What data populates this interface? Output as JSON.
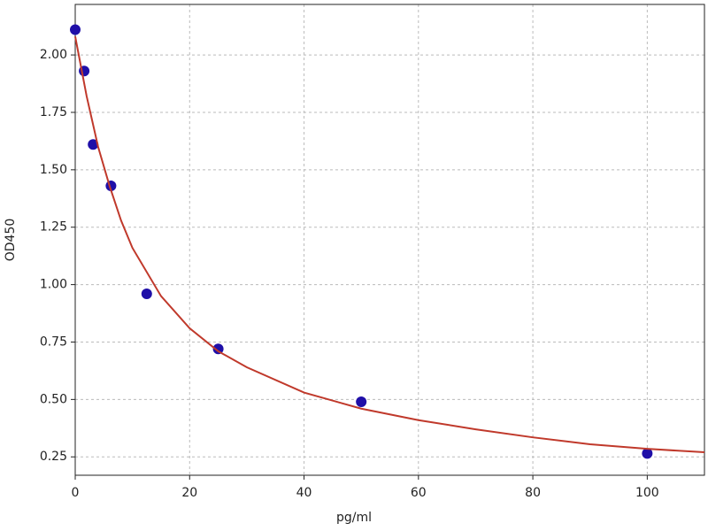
{
  "chart_data": {
    "type": "scatter",
    "xlabel": "pg/ml",
    "ylabel": "OD450",
    "xlim": [
      0,
      110
    ],
    "ylim": [
      0.17,
      2.22
    ],
    "xticks": [
      0,
      20,
      40,
      60,
      80,
      100
    ],
    "yticks": [
      {
        "value": 0.25,
        "label": "0.25"
      },
      {
        "value": 0.5,
        "label": "0.50"
      },
      {
        "value": 0.75,
        "label": "0.75"
      },
      {
        "value": 1.0,
        "label": "1.00"
      },
      {
        "value": 1.25,
        "label": "1.25"
      },
      {
        "value": 1.5,
        "label": "1.50"
      },
      {
        "value": 1.75,
        "label": "1.75"
      },
      {
        "value": 2.0,
        "label": "2.00"
      }
    ],
    "grid": true,
    "series": [
      {
        "kind": "points",
        "color": "#1f0fa8",
        "x": [
          0,
          1.5625,
          3.125,
          6.25,
          12.5,
          25,
          50,
          100
        ],
        "values": [
          2.11,
          1.93,
          1.61,
          1.43,
          0.96,
          0.72,
          0.49,
          0.265
        ]
      },
      {
        "kind": "line",
        "color": "#c0392b",
        "x": [
          0,
          1,
          2,
          4,
          6,
          8,
          10,
          15,
          20,
          25,
          30,
          40,
          50,
          60,
          70,
          80,
          90,
          100,
          110
        ],
        "values": [
          2.08,
          1.95,
          1.82,
          1.6,
          1.43,
          1.28,
          1.16,
          0.95,
          0.81,
          0.71,
          0.64,
          0.53,
          0.46,
          0.41,
          0.37,
          0.335,
          0.305,
          0.285,
          0.27
        ]
      }
    ]
  }
}
